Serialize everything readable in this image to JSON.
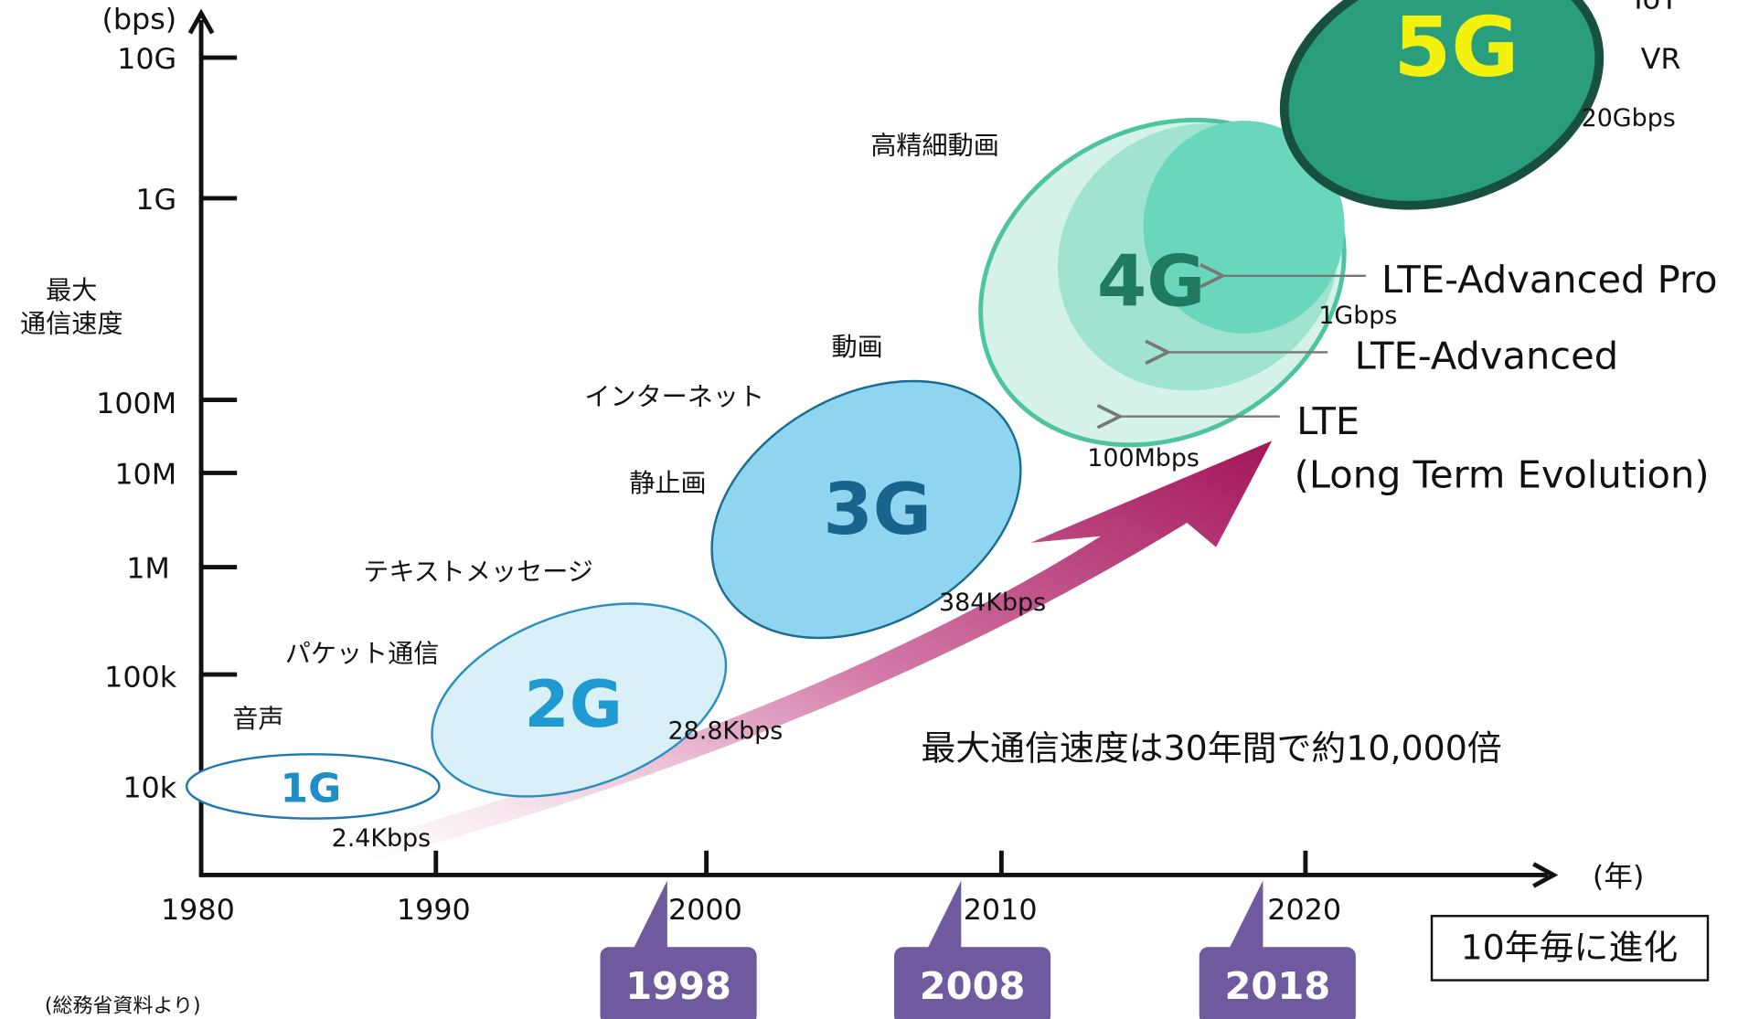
{
  "y_axis": {
    "unit": "(bps)",
    "label": [
      "最大",
      "通信速度"
    ],
    "ticks": [
      "10G",
      "1G",
      "100M",
      "10M",
      "1M",
      "100k",
      "10k"
    ]
  },
  "x_axis": {
    "unit": "(年)",
    "ticks": [
      "1980",
      "1990",
      "2000",
      "2010",
      "2020"
    ]
  },
  "generations": [
    "1G",
    "2G",
    "3G",
    "4G",
    "5G"
  ],
  "speeds": [
    "2.4Kbps",
    "28.8Kbps",
    "384Kbps",
    "100Mbps",
    "1Gbps",
    "20Gbps"
  ],
  "services": [
    "音声",
    "パケット通信",
    "テキストメッセージ",
    "静止画",
    "インターネット",
    "動画",
    "高精細動画",
    "VR",
    "IoT"
  ],
  "lte": [
    "LTE-Advanced Pro",
    "LTE-Advanced",
    "LTE",
    "(Long Term Evolution)"
  ],
  "note": "最大通信速度は30年間で約10,000倍",
  "box": "10年毎に進化",
  "milestones": [
    "1998",
    "2008",
    "2018"
  ],
  "source": "(総務省資料より)"
}
